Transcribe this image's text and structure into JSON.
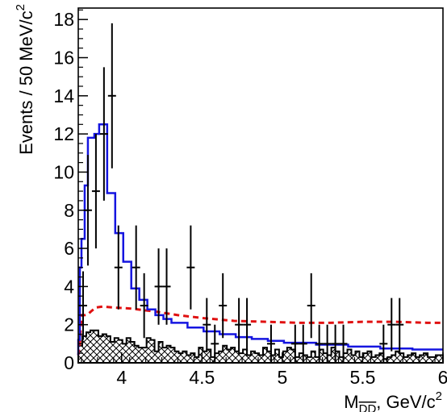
{
  "chart_data": {
    "type": "histogram",
    "title": "",
    "xlabel_base": "M",
    "xlabel_sub": "DD",
    "xlabel_rest": ", GeV/c",
    "xlabel_sup": "2",
    "ylabel_base": "Events / 50 MeV/c",
    "ylabel_sup": "2",
    "xlim": [
      3.73,
      6.0
    ],
    "ylim": [
      0,
      18.6
    ],
    "grid": false,
    "legend": "none",
    "x_ticks": [
      {
        "value": 4.0,
        "label": "4"
      },
      {
        "value": 4.5,
        "label": "4.5"
      },
      {
        "value": 5.0,
        "label": "5"
      },
      {
        "value": 5.5,
        "label": "5.5"
      },
      {
        "value": 6.0,
        "label": "6"
      }
    ],
    "y_ticks": [
      {
        "value": 0,
        "label": "0"
      },
      {
        "value": 2,
        "label": "2"
      },
      {
        "value": 4,
        "label": "4"
      },
      {
        "value": 6,
        "label": "6"
      },
      {
        "value": 8,
        "label": "8"
      },
      {
        "value": 10,
        "label": "10"
      },
      {
        "value": 12,
        "label": "12"
      },
      {
        "value": 14,
        "label": "14"
      },
      {
        "value": 16,
        "label": "16"
      },
      {
        "value": 18,
        "label": "18"
      }
    ],
    "colors": {
      "fit": "#1515e0",
      "background": "#e01010",
      "data": "#000000",
      "hatch": "#000000"
    },
    "data_points": [
      {
        "x": 3.76,
        "y": 3,
        "err": 1.8
      },
      {
        "x": 3.79,
        "y": 8,
        "err": 2.9
      },
      {
        "x": 3.84,
        "y": 9,
        "err": 3.0
      },
      {
        "x": 3.89,
        "y": 12,
        "err": 3.5
      },
      {
        "x": 3.94,
        "y": 14,
        "err": 3.8
      },
      {
        "x": 3.98,
        "y": 5,
        "err": 2.2
      },
      {
        "x": 4.09,
        "y": 5,
        "err": 2.2
      },
      {
        "x": 4.14,
        "y": 3,
        "err": 1.7
      },
      {
        "x": 4.23,
        "y": 4,
        "err": 2.0
      },
      {
        "x": 4.28,
        "y": 4,
        "err": 2.0
      },
      {
        "x": 4.43,
        "y": 5,
        "err": 2.2
      },
      {
        "x": 4.53,
        "y": 2,
        "err": 1.4
      },
      {
        "x": 4.58,
        "y": 1,
        "err": 1.0
      },
      {
        "x": 4.63,
        "y": 3,
        "err": 1.7
      },
      {
        "x": 4.73,
        "y": 2,
        "err": 1.4
      },
      {
        "x": 4.78,
        "y": 2,
        "err": 1.4
      },
      {
        "x": 4.93,
        "y": 1,
        "err": 1.0
      },
      {
        "x": 5.08,
        "y": 1,
        "err": 1.0
      },
      {
        "x": 5.13,
        "y": 1,
        "err": 1.0
      },
      {
        "x": 5.18,
        "y": 3,
        "err": 1.7
      },
      {
        "x": 5.23,
        "y": 1,
        "err": 1.0
      },
      {
        "x": 5.28,
        "y": 1,
        "err": 1.0
      },
      {
        "x": 5.33,
        "y": 1,
        "err": 1.0
      },
      {
        "x": 5.38,
        "y": 1,
        "err": 1.0
      },
      {
        "x": 5.63,
        "y": 1,
        "err": 1.0
      },
      {
        "x": 5.68,
        "y": 2,
        "err": 1.4
      },
      {
        "x": 5.73,
        "y": 2,
        "err": 1.4
      }
    ],
    "fit_curve": [
      [
        3.73,
        0.4
      ],
      [
        3.73,
        1.2
      ],
      [
        3.74,
        1.2
      ],
      [
        3.74,
        5.0
      ],
      [
        3.75,
        5.0
      ],
      [
        3.75,
        6.5
      ],
      [
        3.77,
        6.5
      ],
      [
        3.77,
        9.3
      ],
      [
        3.79,
        9.3
      ],
      [
        3.79,
        11.8
      ],
      [
        3.83,
        11.8
      ],
      [
        3.83,
        12.0
      ],
      [
        3.86,
        12.0
      ],
      [
        3.86,
        12.5
      ],
      [
        3.91,
        12.5
      ],
      [
        3.91,
        8.9
      ],
      [
        3.96,
        8.9
      ],
      [
        3.96,
        6.8
      ],
      [
        4.01,
        6.8
      ],
      [
        4.01,
        5.3
      ],
      [
        4.06,
        5.3
      ],
      [
        4.06,
        3.9
      ],
      [
        4.11,
        3.9
      ],
      [
        4.11,
        3.3
      ],
      [
        4.16,
        3.3
      ],
      [
        4.16,
        2.8
      ],
      [
        4.21,
        2.8
      ],
      [
        4.21,
        2.5
      ],
      [
        4.26,
        2.5
      ],
      [
        4.26,
        2.3
      ],
      [
        4.31,
        2.3
      ],
      [
        4.31,
        2.1
      ],
      [
        4.41,
        2.1
      ],
      [
        4.41,
        1.85
      ],
      [
        4.51,
        1.85
      ],
      [
        4.51,
        1.65
      ],
      [
        4.61,
        1.65
      ],
      [
        4.61,
        1.5
      ],
      [
        4.71,
        1.5
      ],
      [
        4.71,
        1.35
      ],
      [
        4.81,
        1.35
      ],
      [
        4.81,
        1.25
      ],
      [
        4.91,
        1.25
      ],
      [
        4.91,
        1.15
      ],
      [
        5.01,
        1.15
      ],
      [
        5.01,
        1.05
      ],
      [
        5.21,
        1.05
      ],
      [
        5.21,
        0.95
      ],
      [
        5.41,
        0.95
      ],
      [
        5.41,
        0.85
      ],
      [
        5.61,
        0.85
      ],
      [
        5.61,
        0.75
      ],
      [
        5.81,
        0.75
      ],
      [
        5.81,
        0.7
      ],
      [
        6.0,
        0.7
      ]
    ],
    "background_curve": [
      [
        3.73,
        0.4
      ],
      [
        3.74,
        1.0
      ],
      [
        3.75,
        2.5
      ],
      [
        3.77,
        2.5
      ],
      [
        3.79,
        2.55
      ],
      [
        3.81,
        2.7
      ],
      [
        3.84,
        2.9
      ],
      [
        3.88,
        2.95
      ],
      [
        3.95,
        2.9
      ],
      [
        4.05,
        2.85
      ],
      [
        4.2,
        2.7
      ],
      [
        4.35,
        2.5
      ],
      [
        4.5,
        2.35
      ],
      [
        4.7,
        2.2
      ],
      [
        4.9,
        2.15
      ],
      [
        5.1,
        2.1
      ],
      [
        5.3,
        2.1
      ],
      [
        5.5,
        2.15
      ],
      [
        5.7,
        2.15
      ],
      [
        5.9,
        2.1
      ],
      [
        6.0,
        2.1
      ]
    ],
    "hatched_hist": {
      "bin_start": 3.73,
      "bin_width": 0.025,
      "values": [
        0.9,
        1.4,
        1.6,
        1.7,
        1.7,
        1.4,
        1.5,
        1.4,
        1.1,
        1.3,
        1.2,
        1.0,
        1.3,
        1.1,
        0.9,
        0.8,
        0.8,
        1.3,
        1.2,
        0.6,
        1.1,
        0.8,
        0.9,
        0.8,
        0.6,
        0.5,
        0.6,
        0.4,
        0.5,
        0.3,
        0.8,
        0.6,
        0.7,
        0.3,
        0.5,
        0.6,
        0.9,
        0.7,
        0.8,
        0.6,
        0.5,
        0.7,
        0.4,
        0.6,
        0.5,
        0.4,
        0.8,
        0.6,
        0.4,
        0.7,
        0.3,
        0.6,
        0.8,
        0.7,
        0.3,
        0.5,
        0.4,
        0.3,
        0.6,
        0.3,
        0.7,
        0.5,
        0.4,
        0.8,
        0.6,
        0.3,
        0.5,
        0.7,
        0.4,
        0.6,
        0.3,
        0.5,
        0.6,
        0.3,
        0.4,
        0.5,
        0.2,
        0.3,
        0.4,
        0.6,
        0.5,
        0.3,
        0.4,
        0.5,
        0.3,
        0.4,
        0.5,
        0.3,
        0.3,
        0.4,
        0.4
      ]
    }
  }
}
